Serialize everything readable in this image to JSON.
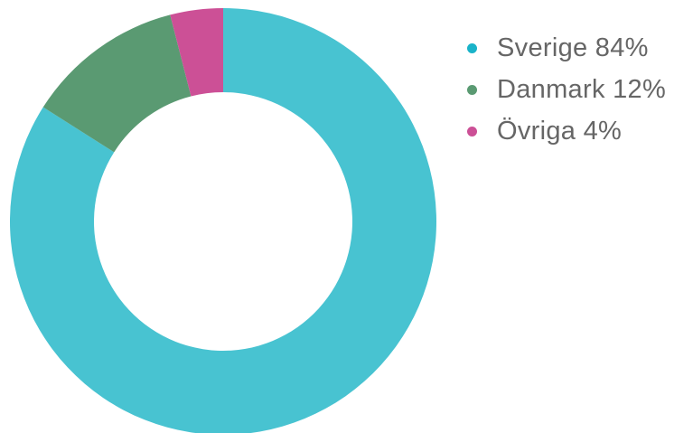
{
  "chart_data": {
    "type": "pie",
    "variant": "donut",
    "title": "",
    "categories": [
      "Sverige",
      "Danmark",
      "Övriga"
    ],
    "values": [
      84,
      12,
      4
    ],
    "colors": [
      "#48c3d1",
      "#5a9a72",
      "#cc5096"
    ],
    "legend": {
      "placement": "right",
      "entries": [
        {
          "label": "Sverige 84%",
          "color": "#48c3d1",
          "marker_color": "#1ab3c9"
        },
        {
          "label": "Danmark 12%",
          "color": "#5a9a72",
          "marker_color": "#5a9a72"
        },
        {
          "label": "Övriga 4%",
          "color": "#cc5096",
          "marker_color": "#cc5096"
        }
      ]
    }
  }
}
